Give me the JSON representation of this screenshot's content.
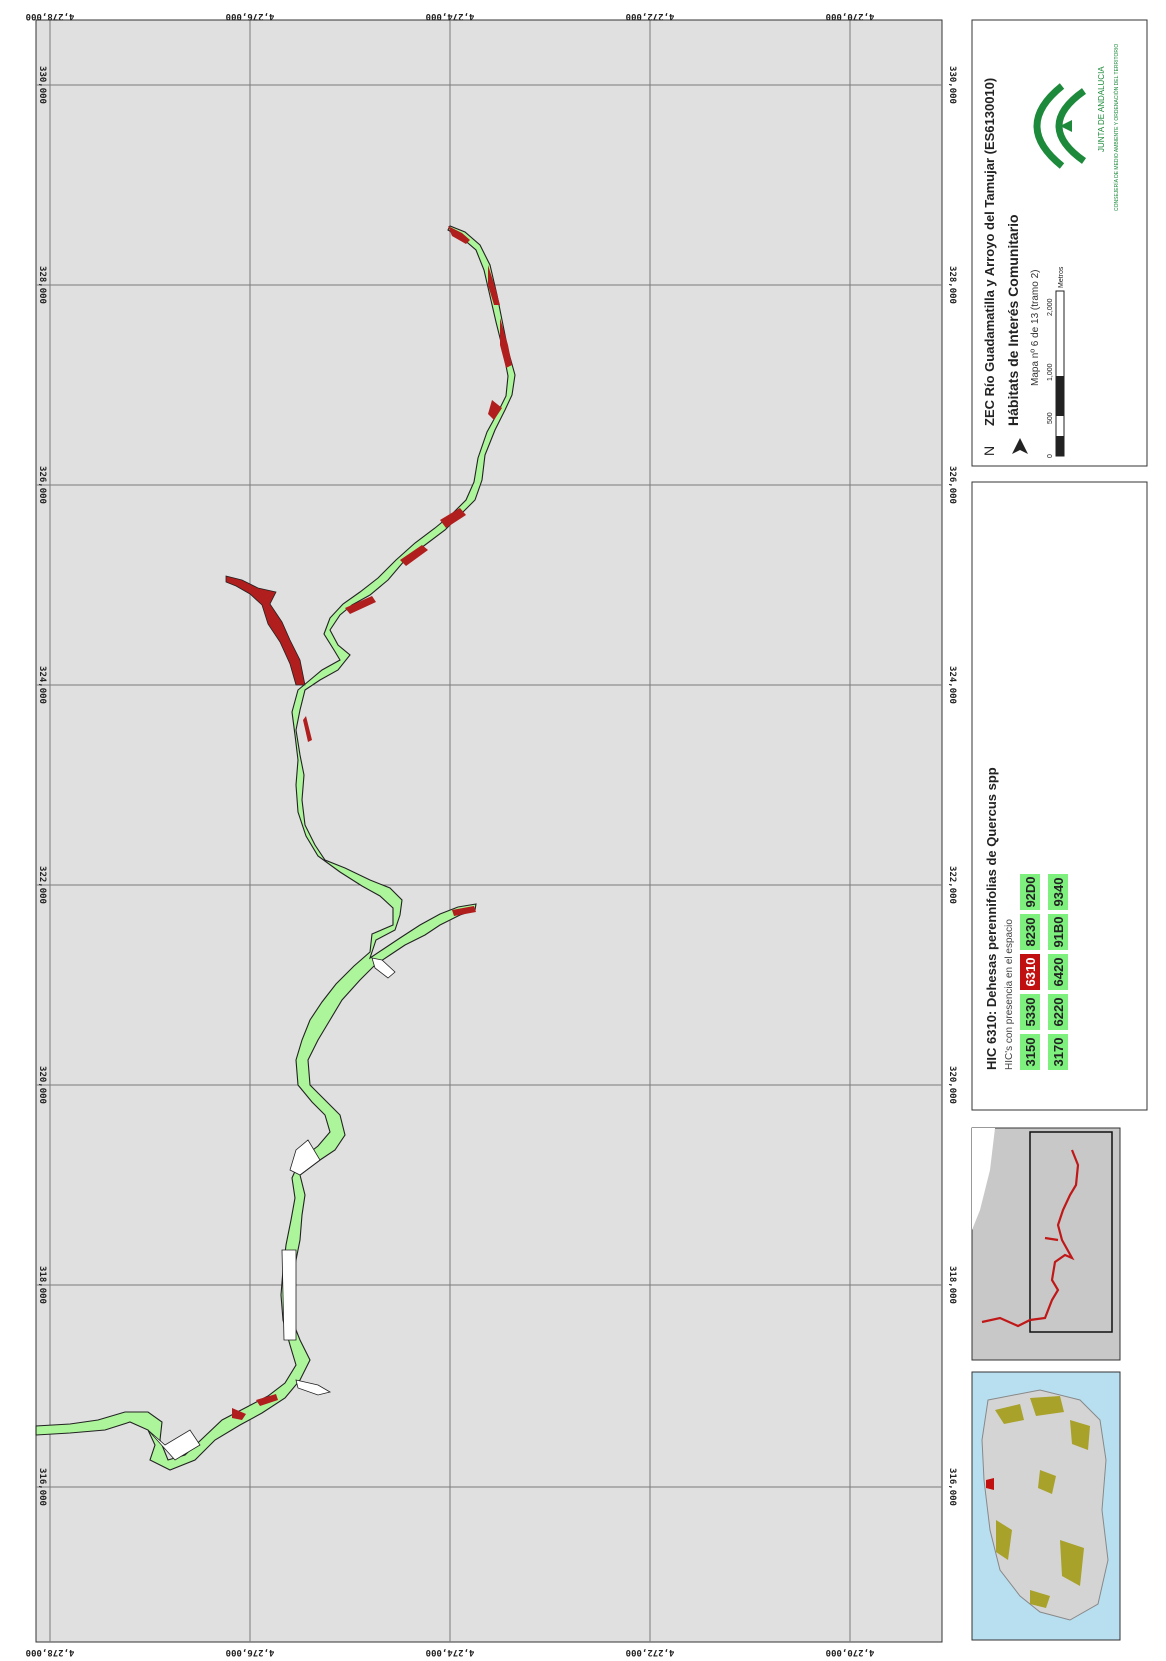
{
  "coords": {
    "x_labels": [
      "316,000",
      "318,000",
      "320,000",
      "322,000",
      "324,000",
      "326,000",
      "328,000",
      "330,000"
    ],
    "y_labels": [
      "4,270,000",
      "4,272,000",
      "4,274,000",
      "4,276,000",
      "4,278,000"
    ]
  },
  "title": {
    "line1": "ZEC Río Guadamatilla y Arroyo del Tamujar (ES6130010)",
    "line2": "Hábitats de Interés Comunitario",
    "map_number": "Mapa nº 6 de 13 (tramo 2)",
    "north": "N"
  },
  "scale": {
    "ticks": [
      "0",
      "500",
      "1,000",
      "2,000"
    ],
    "unit": "Metros"
  },
  "logo": {
    "name": "JUNTA DE ANDALUCIA",
    "dept": "CONSEJERÍA DE MEDIO AMBIENTE Y ORDENACIÓN DEL TERRITORIO"
  },
  "legend": {
    "title": "HIC 6310: Dehesas perennifolias de Quercus spp",
    "subtitle": "HIC's con presencia en el espacio",
    "codes_row1": [
      "3150",
      "5330",
      "6310",
      "8230",
      "92D0"
    ],
    "codes_row2": [
      "3170",
      "6220",
      "6420",
      "91B0",
      "9340"
    ],
    "highlight": "6310"
  },
  "colors": {
    "background": "#e0e0e0",
    "habitat_other": "#adf59a",
    "habitat_6310": "#b01e1e",
    "river_outline": "#222222",
    "legend_green": "#7ef07e",
    "legend_red": "#c01010",
    "logo_green": "#1c8a3a"
  }
}
